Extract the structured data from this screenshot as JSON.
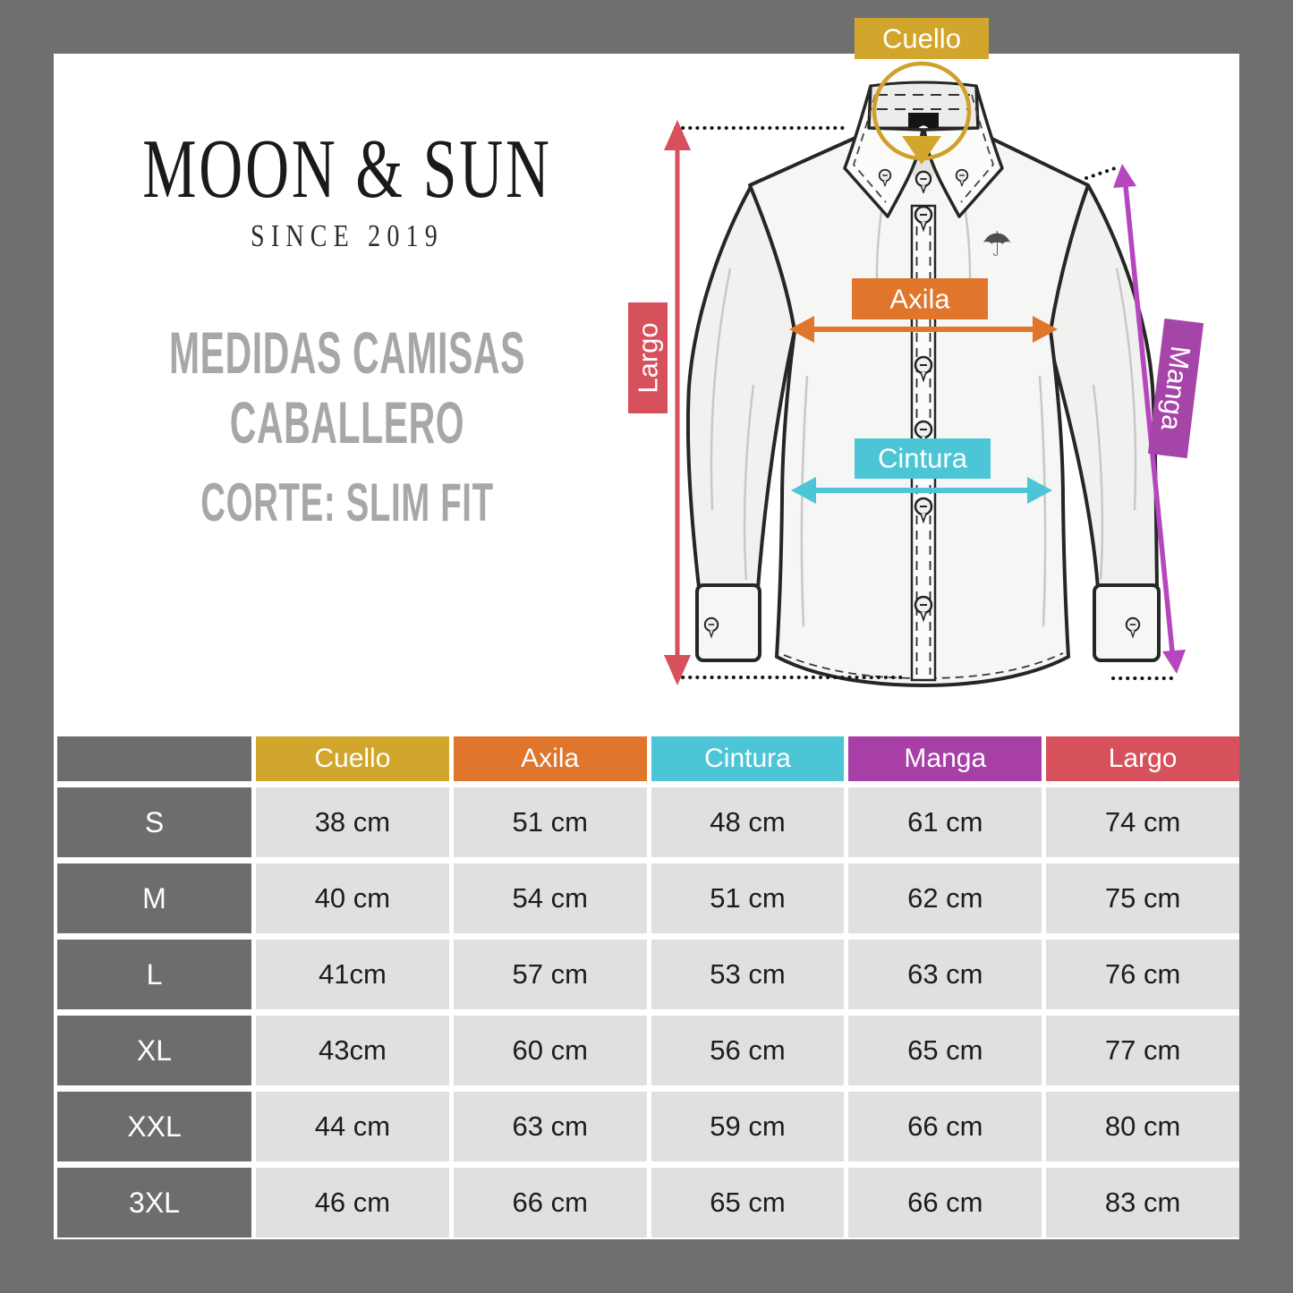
{
  "brand": {
    "name": "MOON & SUN",
    "since": "SINCE 2019"
  },
  "heading": {
    "line1": "MEDIDAS CAMISAS",
    "line2": "CABALLERO",
    "fit": "CORTE: SLIM FIT"
  },
  "palette": {
    "gold": "#d2a62c",
    "orange": "#e0752c",
    "cyan": "#4cc5d6",
    "purple": "#a73fa7",
    "red": "#d6515c",
    "frame_gray": "#6f6f6f",
    "row_label_gray": "#6d6d6d",
    "value_cell_gray": "#e0e0e0"
  },
  "diagram": {
    "measure_labels": {
      "cuello": "Cuello",
      "axila": "Axila",
      "cintura": "Cintura",
      "manga": "Manga",
      "largo": "Largo"
    },
    "umbrella_glyph": "☂"
  },
  "table": {
    "corner": "",
    "columns": [
      {
        "label": "Cuello",
        "color": "#d2a62c"
      },
      {
        "label": "Axila",
        "color": "#e0752c"
      },
      {
        "label": "Cintura",
        "color": "#4cc5d6"
      },
      {
        "label": "Manga",
        "color": "#a73fa7"
      },
      {
        "label": "Largo",
        "color": "#d6515c"
      }
    ],
    "rows": [
      {
        "size": "S",
        "values": [
          "38 cm",
          "51 cm",
          "48 cm",
          "61 cm",
          "74 cm"
        ]
      },
      {
        "size": "M",
        "values": [
          "40 cm",
          "54 cm",
          "51 cm",
          "62 cm",
          "75 cm"
        ]
      },
      {
        "size": "L",
        "values": [
          "41cm",
          "57 cm",
          "53 cm",
          "63 cm",
          "76 cm"
        ]
      },
      {
        "size": "XL",
        "values": [
          "43cm",
          "60 cm",
          "56 cm",
          "65 cm",
          "77 cm"
        ]
      },
      {
        "size": "XXL",
        "values": [
          "44 cm",
          "63 cm",
          "59 cm",
          "66 cm",
          "80 cm"
        ]
      },
      {
        "size": "3XL",
        "values": [
          "46 cm",
          "66 cm",
          "65 cm",
          "66 cm",
          "83 cm"
        ]
      }
    ]
  }
}
